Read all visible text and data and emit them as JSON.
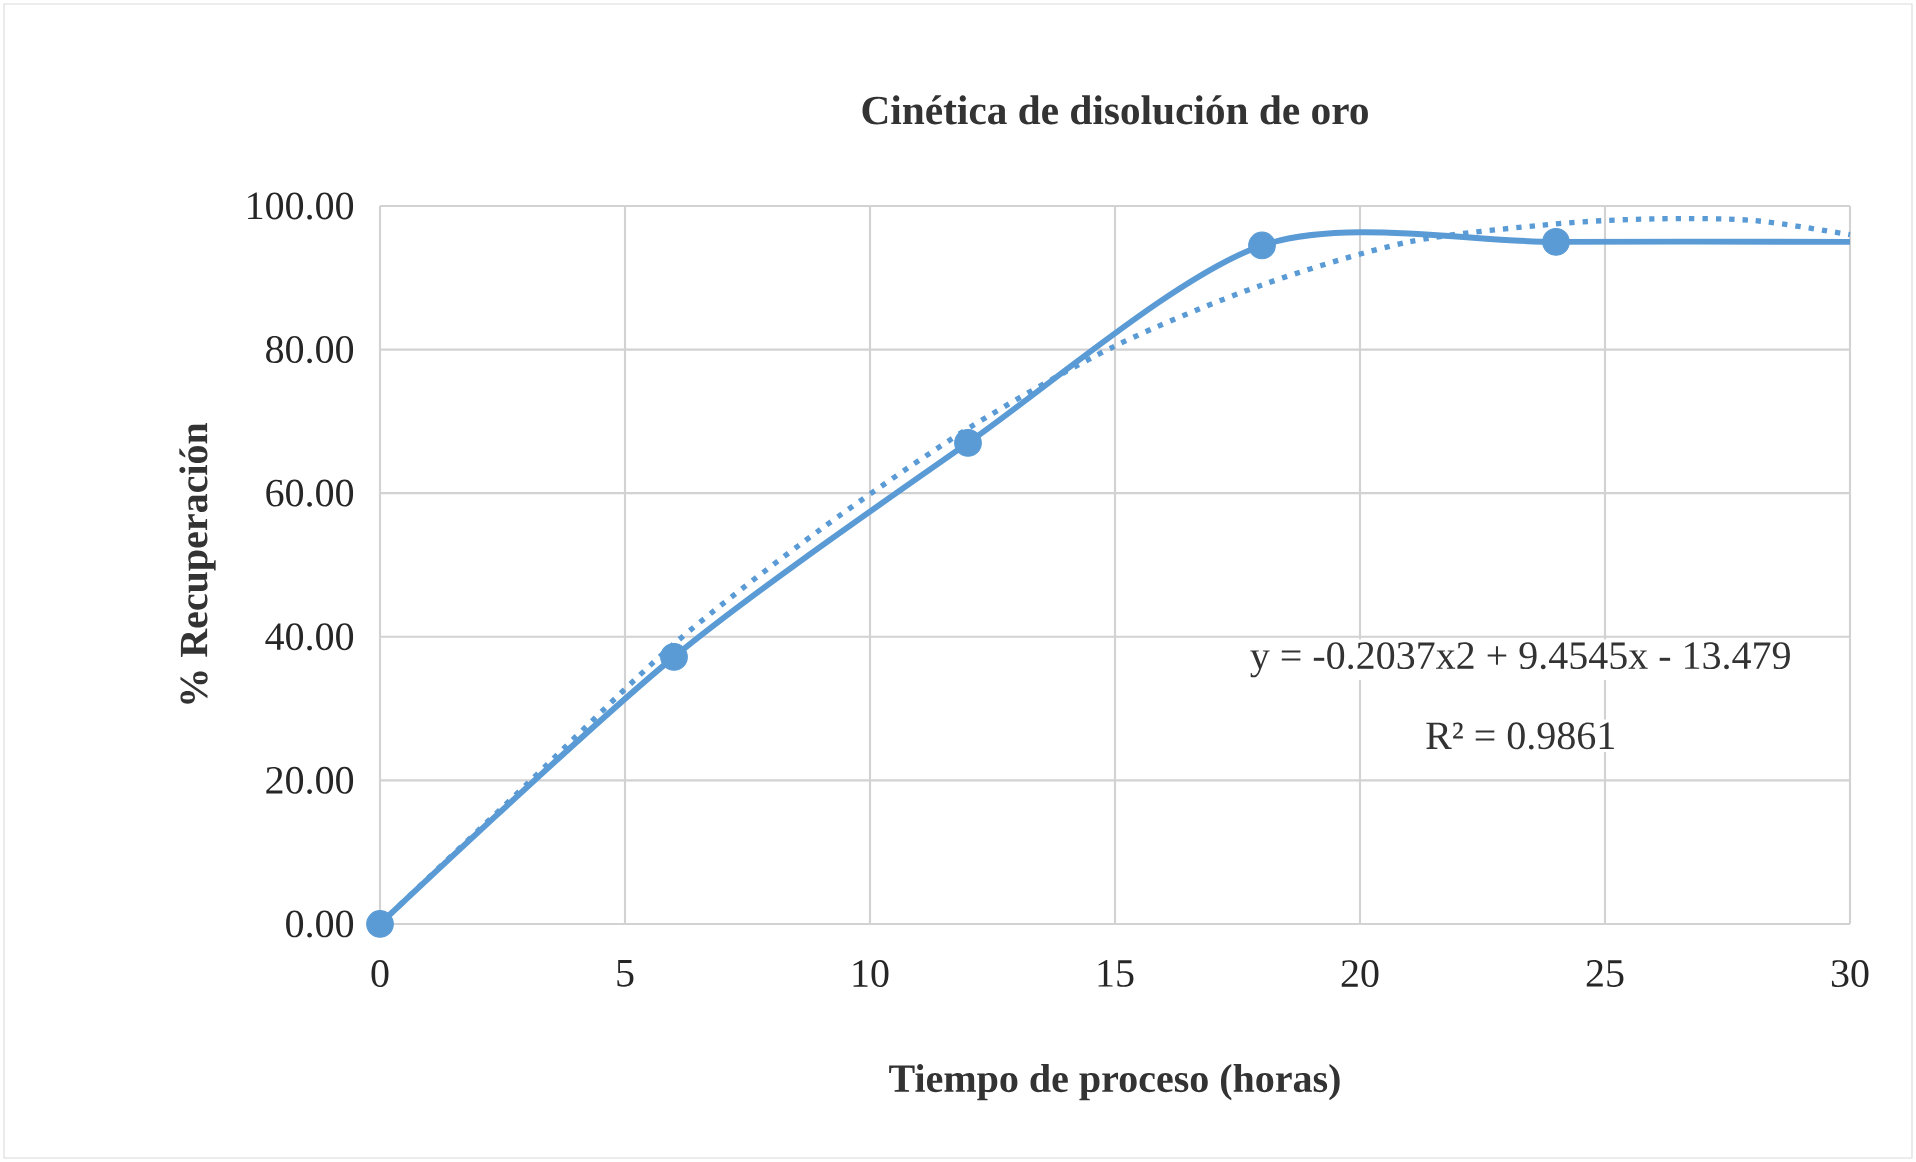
{
  "chart_data": {
    "type": "line",
    "title": "Cinética de disolución de oro",
    "xlabel": "Tiempo de proceso (horas)",
    "ylabel": "% Recuperación",
    "series": [
      {
        "color": "#5b9bd5",
        "marker": "none",
        "line_style": "solid",
        "x": [
          0,
          6,
          12,
          18,
          24,
          30
        ],
        "values": [
          0,
          37.2,
          67,
          94.5,
          95,
          95
        ]
      },
      {
        "type": "scatter",
        "color": "#5b9bd5",
        "marker": "circle",
        "x": [
          0,
          6,
          12,
          18,
          24
        ],
        "values": [
          0,
          37.2,
          67,
          94.5,
          95
        ]
      },
      {
        "color": "#5b9bd5",
        "marker": "none",
        "line_style": "dotted",
        "x": [
          0,
          3,
          6,
          9,
          12,
          15,
          18,
          21,
          24,
          26,
          28,
          30
        ],
        "values": [
          0,
          19.5,
          39,
          55,
          69,
          80.5,
          89,
          95,
          97.5,
          98.2,
          98,
          96
        ]
      }
    ],
    "xlim": [
      0,
      30
    ],
    "xticks": [
      0,
      5,
      10,
      15,
      20,
      25,
      30
    ],
    "ylim": [
      0,
      100
    ],
    "yticks": [
      {
        "value": 0,
        "label": "0.00"
      },
      {
        "value": 20,
        "label": "20.00"
      },
      {
        "value": 40,
        "label": "40.00"
      },
      {
        "value": 60,
        "label": "60.00"
      },
      {
        "value": 80,
        "label": "80.00"
      },
      {
        "value": 100,
        "label": "100.00"
      }
    ],
    "grid": true,
    "annotations": [
      "y = -0.2037x2 + 9.4545x - 13.479",
      "R² = 0.9861"
    ]
  }
}
